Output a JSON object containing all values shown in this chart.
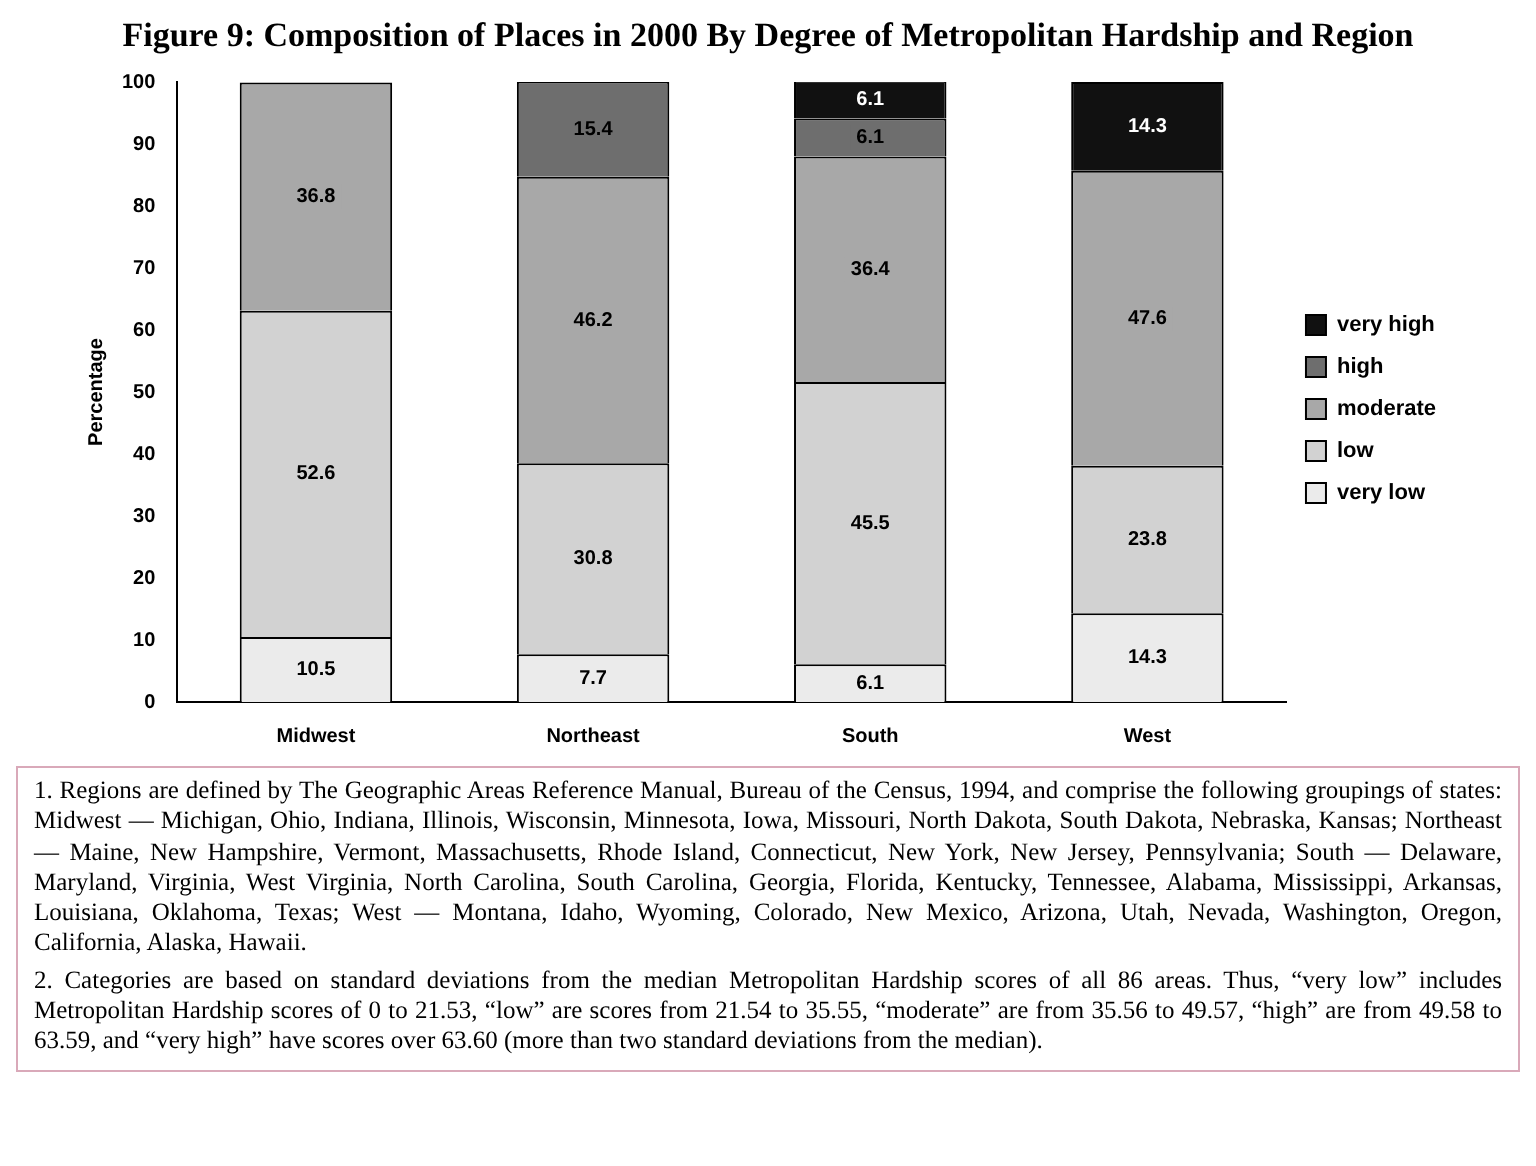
{
  "chart_data": {
    "type": "bar",
    "stacked": true,
    "title": "Figure 9: Composition of Places in 2000 By Degree of Metropolitan Hardship and Region",
    "ylabel": "Percentage",
    "categories": [
      "Midwest",
      "Northeast",
      "South",
      "West"
    ],
    "series": [
      {
        "name": "very low",
        "color": "#ebebeb",
        "values": [
          10.5,
          7.7,
          6.1,
          14.3
        ]
      },
      {
        "name": "low",
        "color": "#d2d2d2",
        "values": [
          52.6,
          30.8,
          45.5,
          23.8
        ]
      },
      {
        "name": "moderate",
        "color": "#a8a8a8",
        "values": [
          36.8,
          46.2,
          36.4,
          47.6
        ]
      },
      {
        "name": "high",
        "color": "#6e6e6e",
        "values": [
          null,
          15.4,
          6.1,
          null
        ]
      },
      {
        "name": "very high",
        "color": "#111111",
        "values": [
          null,
          null,
          6.1,
          14.3
        ]
      }
    ],
    "ylim": [
      0,
      100
    ],
    "yticks": [
      0,
      10,
      20,
      30,
      40,
      50,
      60,
      70,
      80,
      90,
      100
    ],
    "grid": false,
    "legend": "right",
    "data_labels": true,
    "annotations": [
      "1. Regions are defined by The Geographic Areas Reference Manual, Bureau of the Census, 1994, and comprise the following groupings of states: Midwest — Michigan, Ohio, Indiana, Illinois, Wisconsin, Minnesota, Iowa, Missouri, North Dakota, South Dakota, Nebraska, Kansas; Northeast — Maine, New Hampshire, Vermont, Massachusetts, Rhode Island, Connecticut, New York, New Jersey, Pennsylvania; South — Delaware, Maryland, Virginia, West Virginia, North Carolina, South Carolina, Georgia, Florida, Kentucky, Tennessee, Alabama, Mississippi, Arkansas, Louisiana, Oklahoma, Texas; West — Montana, Idaho, Wyoming, Colorado, New Mexico, Arizona, Utah, Nevada, Washington, Oregon, California, Alaska, Hawaii.",
      "2. Categories are based on standard deviations from the median Metropolitan Hardship scores of all 86 areas. Thus, “very low” includes Metropolitan Hardship scores of 0 to 21.53, “low” are scores from 21.54 to 35.55, “moderate” are from 35.56 to 49.57, “high” are from 49.58 to 63.59, and “very high” have scores over 63.60 (more than two standard deviations from the median)."
    ]
  }
}
